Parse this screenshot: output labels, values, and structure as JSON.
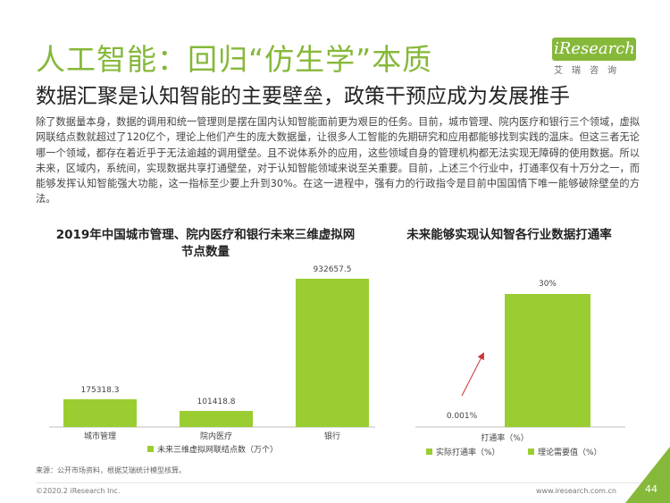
{
  "header": {
    "title": "人工智能：回归“仿生学”本质",
    "subtitle": "数据汇聚是认知智能的主要壁垒，政策干预应成为发展推手"
  },
  "logo": {
    "brand": "iResearch",
    "sub": "艾瑞咨询"
  },
  "body_text": "除了数据量本身，数据的调用和统一管理则是摆在国内认知智能面前更为艰巨的任务。目前，城市管理、院内医疗和银行三个领域，虚拟网联结点数就超过了120亿个，理论上他们产生的庞大数据量，让很多人工智能的先期研究和应用都能够找到实践的温床。但这三者无论哪一个领域，都存在着近乎于无法逾越的调用壁垒。且不说体系外的应用，这些领域自身的管理机构都无法实现无障碍的使用数据。所以未来，区域内，系统间，实现数据共享打通壁垒，对于认知智能领域来说至关重要。目前，上述三个行业中，打通率仅有十万分之一，而能够发挥认知智能强大功能，这一指标至少要上升到30%。在这一进程中，强有力的行政指令是目前中国国情下唯一能够破除壁垒的方法。",
  "colors": {
    "accent": "#86b83a",
    "bar": "#9acd32",
    "arrow": "#cc3333"
  },
  "chart_data": [
    {
      "type": "bar",
      "title": "2019年中国城市管理、院内医疗和银行未来三维虚拟网节点数量",
      "categories": [
        "城市管理",
        "院内医疗",
        "银行"
      ],
      "series": [
        {
          "name": "未来三维虚拟网联结点数（万个）",
          "values": [
            175318.3,
            101418.8,
            932657.5
          ]
        }
      ],
      "value_labels": [
        "175318.3",
        "101418.8",
        "932657.5"
      ],
      "ylim": [
        0,
        1000000
      ],
      "legend": "bottom",
      "grid": false
    },
    {
      "type": "bar",
      "title": "未来能够实现认知智各行业数据打通率",
      "categories": [
        "打通率（%）"
      ],
      "series": [
        {
          "name": "实际打通率（%）",
          "values": [
            0.001
          ]
        },
        {
          "name": "理论需要值（%）",
          "values": [
            30
          ]
        }
      ],
      "value_labels": [
        "0.001%",
        "30%"
      ],
      "ylim": [
        0,
        32
      ],
      "legend": "bottom",
      "grid": false,
      "annotation": "arrow from actual to theoretical value"
    }
  ],
  "footer": {
    "source": "来源：公开市场资料，根据艾瑞统计模型核算。",
    "copyright": "©2020.2 iResearch Inc.",
    "website": "www.iresearch.com.cn",
    "page": "44"
  }
}
